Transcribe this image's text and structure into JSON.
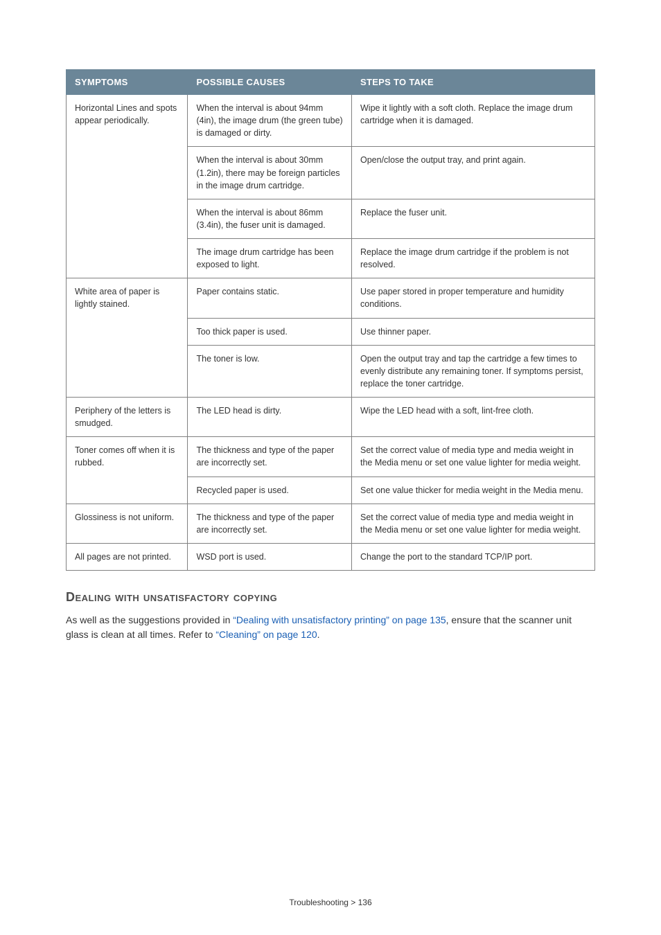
{
  "table": {
    "headers": [
      "SYMPTOMS",
      "POSSIBLE CAUSES",
      "STEPS TO TAKE"
    ],
    "header_bg": "#6b8698",
    "header_color": "#ffffff",
    "border_color": "#808080",
    "rows": [
      {
        "symptom": "Horizontal Lines and spots appear periodically.",
        "symptom_rowspan": 4,
        "cause": "When the interval is about 94mm (4in), the image drum (the green tube) is damaged or dirty.",
        "steps": "Wipe it lightly with a soft cloth. Replace the image drum cartridge when it is damaged."
      },
      {
        "cause": "When the interval is about 30mm (1.2in), there may be foreign particles in the image drum cartridge.",
        "steps": "Open/close the output tray, and print again."
      },
      {
        "cause": "When the interval is about 86mm (3.4in), the fuser unit is damaged.",
        "steps": "Replace the fuser unit."
      },
      {
        "cause": "The image drum cartridge has been exposed to light.",
        "steps": "Replace the image drum cartridge if the problem is not resolved."
      },
      {
        "symptom": "White area of paper is lightly stained.",
        "symptom_rowspan": 3,
        "cause": "Paper contains static.",
        "steps": "Use paper stored in proper temperature and humidity conditions."
      },
      {
        "cause": "Too thick paper is used.",
        "steps": "Use thinner paper."
      },
      {
        "cause": "The toner is low.",
        "steps": "Open the output tray and tap the cartridge a few times to evenly distribute any remaining toner. If symptoms persist, replace the toner cartridge."
      },
      {
        "symptom": "Periphery of the letters is smudged.",
        "symptom_rowspan": 1,
        "cause": "The LED head is dirty.",
        "steps": "Wipe the LED head with a soft, lint-free cloth."
      },
      {
        "symptom": "Toner comes off when it is rubbed.",
        "symptom_rowspan": 2,
        "cause": "The thickness and type of the paper are incorrectly set.",
        "steps": "Set the correct value of media type and media weight in the Media menu or set one value lighter for media weight."
      },
      {
        "cause": "Recycled paper is used.",
        "steps": "Set one value thicker for media weight in the Media menu."
      },
      {
        "symptom": "Glossiness is not uniform.",
        "symptom_rowspan": 1,
        "cause": "The thickness and type of the paper are incorrectly set.",
        "steps": "Set the correct value of media type and media weight in the Media menu or set one value lighter for media weight."
      },
      {
        "symptom": "All pages are not printed.",
        "symptom_rowspan": 1,
        "cause": "WSD port is used.",
        "steps": "Change the port to the standard TCP/IP port."
      }
    ]
  },
  "section": {
    "heading": "Dealing with unsatisfactory copying",
    "para_pre": "As well as the suggestions provided in ",
    "link1": "“Dealing with unsatisfactory printing” on page 135",
    "para_mid": ", ensure that the scanner unit glass is clean at all times. Refer to ",
    "link2": "“Cleaning” on page 120",
    "para_post": ".",
    "link_color": "#1a5fb4"
  },
  "footer": "Troubleshooting > 136"
}
